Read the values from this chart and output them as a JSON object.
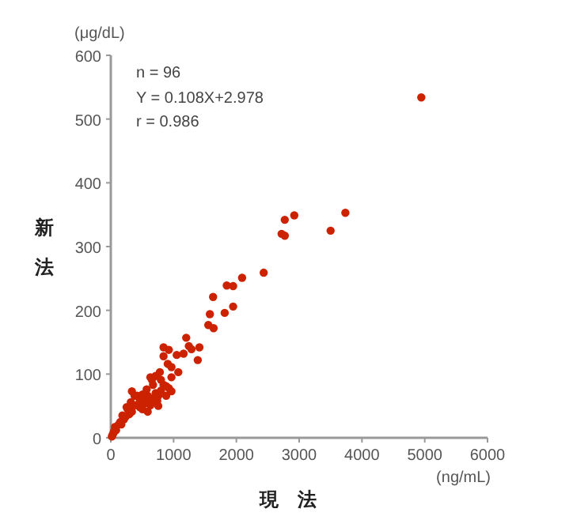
{
  "chart_data": {
    "type": "scatter",
    "xlabel": "現法",
    "ylabel": "新法",
    "annotations": [
      "(μg/dL)",
      "(ng/mL)",
      "n = 96",
      "Y = 0.108X+2.978",
      "r = 0.986"
    ],
    "xlim": [
      0,
      6000
    ],
    "xticks": [
      0,
      1000,
      2000,
      3000,
      4000,
      5000,
      6000
    ],
    "ylim": [
      0,
      600
    ],
    "yticks": [
      0,
      100,
      200,
      300,
      400,
      500,
      600
    ],
    "grid": false,
    "marker": "circle",
    "series": [
      {
        "color": "#cc2200",
        "x": [
          4945,
          2771,
          2922,
          2720,
          2771,
          3501,
          3736,
          2435,
          2091,
          1847,
          1948,
          1629,
          1948,
          1814,
          1578,
          1637,
          1553,
          1201,
          840,
          924,
          1243,
          1285,
          1411,
          1385,
          1050,
          1159,
          840,
          907,
          966,
          1075,
          966,
          781,
          630,
          840,
          336,
          672,
          588,
          672,
          504,
          252,
          420,
          756,
          588,
          294,
          210,
          126,
          84,
          42,
          17,
          168,
          235,
          336,
          462,
          546,
          630,
          714,
          798,
          739,
          882,
          924,
          504,
          378,
          185,
          67,
          151,
          269,
          571,
          655,
          714,
          798,
          882,
          966,
          462,
          319,
          378,
          756,
          630,
          504,
          25,
          50
        ],
        "values": [
          534,
          342,
          349,
          320,
          317,
          325,
          353,
          259,
          251,
          239,
          238,
          221,
          206,
          196,
          194,
          172,
          177,
          157,
          142,
          138,
          144,
          139,
          142,
          122,
          130,
          132,
          128,
          116,
          111,
          103,
          95,
          103,
          95,
          83,
          73,
          83,
          66,
          58,
          58,
          48,
          66,
          66,
          41,
          37,
          29,
          21,
          12,
          7,
          2,
          21,
          33,
          41,
          48,
          54,
          62,
          70,
          74,
          58,
          66,
          78,
          68,
          51,
          35,
          17,
          25,
          45,
          76,
          91,
          97,
          91,
          81,
          73,
          58,
          56,
          66,
          50,
          51,
          45,
          4,
          10
        ]
      }
    ]
  }
}
